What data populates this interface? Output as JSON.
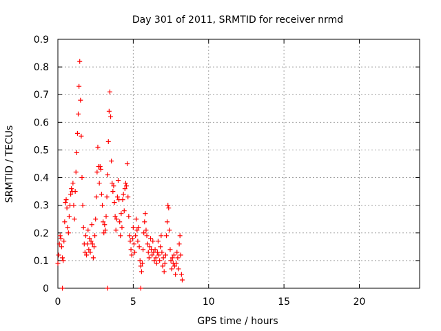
{
  "chart_data": {
    "type": "scatter",
    "title": "Day 301 of 2011, SRMTID for receiver nrmd",
    "xlabel": "GPS time / hours",
    "ylabel": "SRMTID / TECUs",
    "xlim": [
      0,
      24
    ],
    "ylim": [
      0,
      0.9
    ],
    "xticks": [
      0,
      5,
      10,
      15,
      20
    ],
    "yticks": [
      0,
      0.1,
      0.2,
      0.3,
      0.4,
      0.5,
      0.6,
      0.7,
      0.8,
      0.9
    ],
    "x_tick_labels": [
      "0",
      "5",
      "10",
      "15",
      "20"
    ],
    "y_tick_labels": [
      "0",
      "0.1",
      "0.2",
      "0.3",
      "0.4",
      "0.5",
      "0.6",
      "0.7",
      "0.8",
      "0.9"
    ],
    "grid": true,
    "marker": "plus",
    "series_color": "#ff0000",
    "series": [
      {
        "points": [
          [
            0.0,
            0.09
          ],
          [
            0.05,
            0.12
          ],
          [
            0.1,
            0.16
          ],
          [
            0.15,
            0.19
          ],
          [
            0.2,
            0.18
          ],
          [
            0.25,
            0.15
          ],
          [
            0.3,
            0.11
          ],
          [
            0.35,
            0.1
          ],
          [
            0.4,
            0.17
          ],
          [
            0.45,
            0.24
          ],
          [
            0.5,
            0.31
          ],
          [
            0.55,
            0.32
          ],
          [
            0.6,
            0.29
          ],
          [
            0.65,
            0.22
          ],
          [
            0.7,
            0.2
          ],
          [
            0.75,
            0.26
          ],
          [
            0.8,
            0.3
          ],
          [
            0.85,
            0.34
          ],
          [
            0.9,
            0.36
          ],
          [
            0.95,
            0.35
          ],
          [
            1.0,
            0.38
          ],
          [
            1.05,
            0.3
          ],
          [
            1.1,
            0.25
          ],
          [
            1.15,
            0.35
          ],
          [
            1.2,
            0.42
          ],
          [
            1.25,
            0.49
          ],
          [
            1.3,
            0.56
          ],
          [
            1.35,
            0.63
          ],
          [
            1.4,
            0.73
          ],
          [
            1.45,
            0.82
          ],
          [
            1.5,
            0.68
          ],
          [
            1.55,
            0.55
          ],
          [
            1.6,
            0.4
          ],
          [
            1.65,
            0.3
          ],
          [
            1.7,
            0.22
          ],
          [
            1.75,
            0.16
          ],
          [
            1.8,
            0.13
          ],
          [
            1.85,
            0.19
          ],
          [
            1.9,
            0.12
          ],
          [
            1.95,
            0.16
          ],
          [
            2.0,
            0.21
          ],
          [
            2.05,
            0.14
          ],
          [
            2.1,
            0.18
          ],
          [
            2.15,
            0.13
          ],
          [
            2.2,
            0.17
          ],
          [
            2.25,
            0.23
          ],
          [
            2.3,
            0.16
          ],
          [
            2.35,
            0.11
          ],
          [
            2.4,
            0.15
          ],
          [
            2.45,
            0.19
          ],
          [
            2.5,
            0.25
          ],
          [
            2.55,
            0.33
          ],
          [
            2.6,
            0.42
          ],
          [
            2.65,
            0.51
          ],
          [
            2.7,
            0.44
          ],
          [
            2.75,
            0.38
          ],
          [
            2.8,
            0.44
          ],
          [
            2.85,
            0.43
          ],
          [
            2.9,
            0.34
          ],
          [
            2.95,
            0.3
          ],
          [
            3.0,
            0.24
          ],
          [
            3.05,
            0.2
          ],
          [
            3.1,
            0.23
          ],
          [
            3.15,
            0.21
          ],
          [
            3.2,
            0.26
          ],
          [
            3.25,
            0.33
          ],
          [
            3.3,
            0.41
          ],
          [
            3.35,
            0.53
          ],
          [
            3.4,
            0.64
          ],
          [
            3.45,
            0.71
          ],
          [
            3.5,
            0.62
          ],
          [
            3.55,
            0.46
          ],
          [
            3.6,
            0.38
          ],
          [
            3.65,
            0.35
          ],
          [
            3.7,
            0.37
          ],
          [
            3.75,
            0.31
          ],
          [
            3.8,
            0.26
          ],
          [
            3.85,
            0.21
          ],
          [
            3.9,
            0.25
          ],
          [
            3.95,
            0.33
          ],
          [
            4.0,
            0.39
          ],
          [
            4.05,
            0.32
          ],
          [
            4.1,
            0.24
          ],
          [
            4.15,
            0.19
          ],
          [
            4.2,
            0.27
          ],
          [
            4.25,
            0.22
          ],
          [
            4.3,
            0.32
          ],
          [
            4.35,
            0.34
          ],
          [
            4.4,
            0.28
          ],
          [
            4.45,
            0.36
          ],
          [
            4.5,
            0.38
          ],
          [
            4.55,
            0.37
          ],
          [
            4.6,
            0.45
          ],
          [
            4.65,
            0.33
          ],
          [
            4.7,
            0.26
          ],
          [
            4.75,
            0.19
          ],
          [
            4.8,
            0.17
          ],
          [
            4.85,
            0.14
          ],
          [
            4.9,
            0.12
          ],
          [
            4.95,
            0.18
          ],
          [
            5.0,
            0.22
          ],
          [
            5.05,
            0.16
          ],
          [
            5.1,
            0.13
          ],
          [
            5.15,
            0.19
          ],
          [
            5.2,
            0.25
          ],
          [
            5.25,
            0.21
          ],
          [
            5.3,
            0.17
          ],
          [
            5.35,
            0.22
          ],
          [
            5.4,
            0.15
          ],
          [
            5.45,
            0.1
          ],
          [
            5.5,
            0.08
          ],
          [
            5.55,
            0.06
          ],
          [
            5.6,
            0.09
          ],
          [
            5.65,
            0.14
          ],
          [
            5.7,
            0.2
          ],
          [
            5.75,
            0.24
          ],
          [
            5.8,
            0.27
          ],
          [
            5.85,
            0.21
          ],
          [
            5.9,
            0.19
          ],
          [
            5.95,
            0.16
          ],
          [
            6.0,
            0.13
          ],
          [
            6.05,
            0.11
          ],
          [
            6.1,
            0.15
          ],
          [
            6.15,
            0.18
          ],
          [
            6.2,
            0.14
          ],
          [
            6.25,
            0.12
          ],
          [
            6.3,
            0.17
          ],
          [
            6.35,
            0.13
          ],
          [
            6.4,
            0.1
          ],
          [
            6.45,
            0.14
          ],
          [
            6.5,
            0.11
          ],
          [
            6.55,
            0.09
          ],
          [
            6.6,
            0.13
          ],
          [
            6.65,
            0.17
          ],
          [
            6.7,
            0.12
          ],
          [
            6.75,
            0.1
          ],
          [
            6.8,
            0.15
          ],
          [
            6.85,
            0.19
          ],
          [
            6.9,
            0.13
          ],
          [
            6.95,
            0.08
          ],
          [
            7.0,
            0.11
          ],
          [
            7.05,
            0.06
          ],
          [
            7.1,
            0.09
          ],
          [
            7.15,
            0.12
          ],
          [
            7.2,
            0.19
          ],
          [
            7.25,
            0.24
          ],
          [
            7.3,
            0.3
          ],
          [
            7.35,
            0.29
          ],
          [
            7.4,
            0.21
          ],
          [
            7.45,
            0.14
          ],
          [
            7.5,
            0.1
          ],
          [
            7.55,
            0.07
          ],
          [
            7.6,
            0.11
          ],
          [
            7.65,
            0.09
          ],
          [
            7.7,
            0.12
          ],
          [
            7.75,
            0.08
          ],
          [
            7.8,
            0.05
          ],
          [
            7.85,
            0.09
          ],
          [
            7.9,
            0.13
          ],
          [
            7.95,
            0.11
          ],
          [
            8.0,
            0.07
          ],
          [
            8.05,
            0.16
          ],
          [
            8.1,
            0.19
          ],
          [
            8.15,
            0.12
          ],
          [
            8.2,
            0.05
          ],
          [
            8.25,
            0.03
          ],
          [
            0.3,
            0.0
          ],
          [
            3.3,
            0.0
          ],
          [
            5.5,
            0.0
          ]
        ]
      }
    ]
  }
}
